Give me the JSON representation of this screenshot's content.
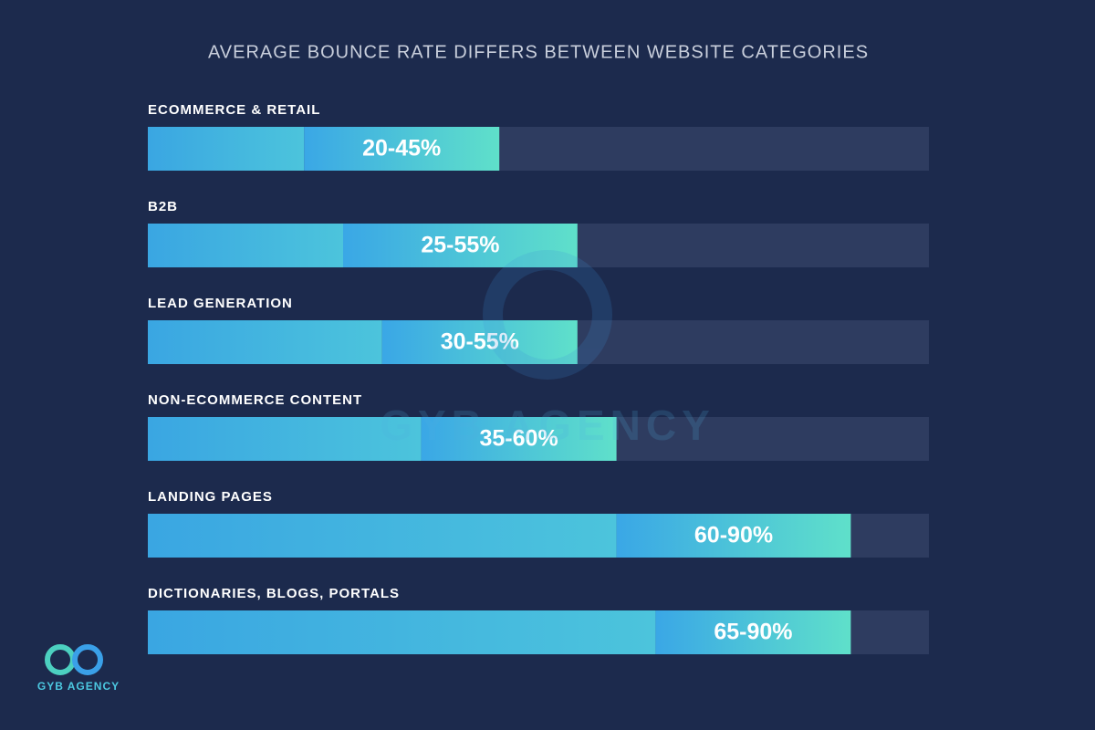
{
  "chart_data": {
    "type": "range-bar",
    "title": "AVERAGE BOUNCE RATE DIFFERS BETWEEN WEBSITE CATEGORIES",
    "categories": [
      "ECOMMERCE & RETAIL",
      "B2B",
      "LEAD GENERATION",
      "NON-ECOMMERCE CONTENT",
      "LANDING PAGES",
      "DICTIONARIES, BLOGS, PORTALS"
    ],
    "low": [
      20,
      25,
      30,
      35,
      60,
      65
    ],
    "high": [
      45,
      55,
      55,
      60,
      90,
      90
    ],
    "value_labels": [
      "20-45%",
      "25-55%",
      "30-55%",
      "35-60%",
      "60-90%",
      "65-90%"
    ],
    "xlim": [
      0,
      100
    ],
    "brand": "GYB AGENCY"
  }
}
